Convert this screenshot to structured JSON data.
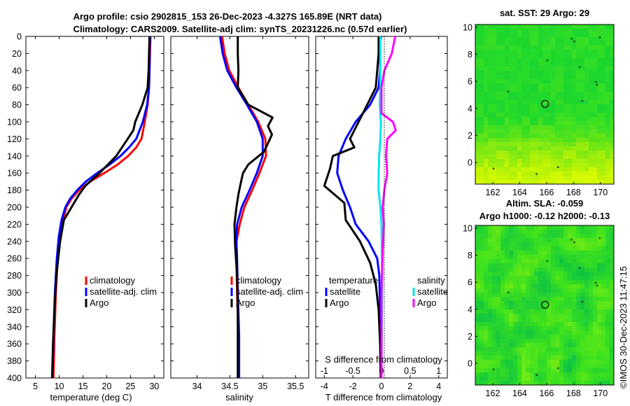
{
  "title": {
    "line1": "Argo profile: csio 2902815_153 26-Dec-2023 -4.327S 165.89E (NRT data)",
    "line2": "Climatology: CARS2009. Satellite-adj clim: synTS_20231226.nc (0.57d earlier)"
  },
  "colors": {
    "climatology": "#ff0000",
    "satellite": "#0000ff",
    "argo": "#000000",
    "sat_salinity": "#00e5ee",
    "argo_salinity": "#ff00ff"
  },
  "depth_ticks": [
    0,
    20,
    40,
    60,
    80,
    100,
    120,
    140,
    160,
    180,
    200,
    220,
    240,
    260,
    280,
    300,
    320,
    340,
    360,
    380,
    400
  ],
  "chart_data": [
    {
      "type": "line",
      "name": "temperature",
      "xlabel": "temperature (deg C)",
      "ylabel": "depth",
      "xlim": [
        3,
        32
      ],
      "ylim": [
        0,
        400
      ],
      "y_reversed": true,
      "xticks": [
        5,
        10,
        15,
        20,
        25,
        30
      ],
      "legend": [
        "climatology",
        "satellite-adj. clim",
        "Argo"
      ],
      "legend_position": "lower-right",
      "series": [
        {
          "name": "climatology",
          "color": "#ff0000",
          "x": [
            29.2,
            29.1,
            29.0,
            28.9,
            28.6,
            28.0,
            27.3,
            26.2,
            24.5,
            22.3,
            19.5,
            16.5,
            14.2,
            12.6,
            11.5,
            10.7,
            10.1,
            9.6,
            9.3,
            9.0,
            8.8
          ],
          "y": [
            0,
            20,
            40,
            60,
            80,
            100,
            120,
            130,
            140,
            150,
            160,
            170,
            180,
            190,
            200,
            220,
            240,
            270,
            300,
            350,
            400
          ]
        },
        {
          "name": "satellite-adj. clim",
          "color": "#0000ff",
          "x": [
            29.1,
            29.0,
            29.0,
            28.9,
            28.5,
            27.6,
            26.2,
            24.7,
            22.9,
            20.6,
            18.0,
            15.6,
            13.8,
            12.3,
            11.3,
            10.5,
            9.9,
            9.5,
            9.1,
            8.8,
            8.6
          ],
          "y": [
            0,
            20,
            40,
            60,
            80,
            100,
            120,
            130,
            140,
            150,
            160,
            170,
            180,
            190,
            200,
            215,
            235,
            260,
            300,
            350,
            400
          ]
        },
        {
          "name": "Argo",
          "color": "#000000",
          "x": [
            29.0,
            28.9,
            28.8,
            28.6,
            27.5,
            26.0,
            25.6,
            24.4,
            22.0,
            18.5,
            15.5,
            14.2,
            12.6,
            11.0,
            10.2,
            9.4,
            9.0,
            8.7,
            8.5
          ],
          "y": [
            0,
            20,
            40,
            60,
            80,
            100,
            110,
            120,
            140,
            160,
            175,
            185,
            200,
            215,
            240,
            280,
            320,
            360,
            400
          ]
        }
      ]
    },
    {
      "type": "line",
      "name": "salinity",
      "xlabel": "salinity",
      "ylabel": "depth",
      "xlim": [
        33.6,
        35.7
      ],
      "ylim": [
        0,
        400
      ],
      "y_reversed": true,
      "xticks": [
        34,
        34.5,
        35,
        35.5
      ],
      "legend": [
        "climatology",
        "satellite-adj. clim",
        "Argo"
      ],
      "legend_position": "lower-right",
      "series": [
        {
          "name": "climatology",
          "color": "#ff0000",
          "x": [
            34.38,
            34.42,
            34.49,
            34.63,
            34.78,
            34.93,
            35.04,
            35.05,
            34.95,
            34.84,
            34.72,
            34.65,
            34.6,
            34.6,
            34.61,
            34.63,
            34.64
          ],
          "y": [
            0,
            20,
            40,
            60,
            80,
            100,
            120,
            140,
            160,
            180,
            200,
            220,
            240,
            260,
            300,
            350,
            400
          ]
        },
        {
          "name": "satellite-adj. clim",
          "color": "#0000ff",
          "x": [
            34.35,
            34.39,
            34.46,
            34.6,
            34.76,
            34.91,
            35.0,
            35.0,
            34.91,
            34.8,
            34.68,
            34.61,
            34.6,
            34.61,
            34.62,
            34.64,
            34.64
          ],
          "y": [
            0,
            20,
            40,
            60,
            80,
            100,
            120,
            140,
            160,
            180,
            200,
            220,
            240,
            260,
            300,
            350,
            400
          ]
        },
        {
          "name": "Argo",
          "color": "#000000",
          "x": [
            34.62,
            34.62,
            34.63,
            34.62,
            34.78,
            35.15,
            35.08,
            35.14,
            35.02,
            34.78,
            34.7,
            34.67,
            34.63,
            34.6,
            34.57,
            34.58,
            34.61,
            34.62,
            34.62,
            34.62
          ],
          "y": [
            0,
            20,
            40,
            60,
            80,
            95,
            105,
            115,
            135,
            150,
            160,
            170,
            185,
            200,
            220,
            245,
            280,
            320,
            360,
            400
          ]
        }
      ]
    },
    {
      "type": "line",
      "name": "difference from climatology",
      "xlabel": "T difference from climatology",
      "xlabel_top": "S difference from climatology",
      "xlim": [
        -4.6,
        4.6
      ],
      "ylim": [
        0,
        400
      ],
      "y_reversed": true,
      "xticks": [
        -4,
        -2,
        0,
        2,
        4
      ],
      "xticks_top": [
        -1,
        -0.5,
        0,
        0.5,
        1
      ],
      "xticks_top_labels": [
        "-1",
        "-0.5",
        "0",
        "0.5",
        "1"
      ],
      "legend_temperature": [
        "temperature",
        "satellite",
        "Argo"
      ],
      "legend_salinity": [
        "salinity",
        "satellite",
        "Argo"
      ],
      "series": [
        {
          "name": "satellite (temperature)",
          "color": "#0000ff",
          "x": [
            -0.1,
            -0.1,
            -0.1,
            -0.2,
            -0.8,
            -1.8,
            -2.5,
            -3.0,
            -3.1,
            -2.7,
            -2.2,
            -1.8,
            -0.9,
            -0.3,
            -0.15,
            -0.1,
            -0.05
          ],
          "y": [
            0,
            20,
            40,
            60,
            80,
            100,
            120,
            140,
            160,
            180,
            200,
            220,
            240,
            260,
            280,
            320,
            400
          ]
        },
        {
          "name": "Argo (temperature)",
          "color": "#000000",
          "x": [
            -0.2,
            -0.2,
            -0.3,
            -0.4,
            -1.0,
            -1.6,
            -2.2,
            -1.9,
            -3.4,
            -3.6,
            -4.0,
            -2.6,
            -2.5,
            -1.5,
            -0.8,
            -0.4,
            -0.2,
            -0.1,
            -0.05
          ],
          "y": [
            0,
            20,
            40,
            60,
            80,
            100,
            120,
            130,
            140,
            155,
            175,
            195,
            215,
            240,
            265,
            290,
            320,
            360,
            400
          ]
        },
        {
          "name": "satellite (salinity)",
          "color": "#00e5ee",
          "x": [
            -0.02,
            -0.02,
            -0.02,
            -0.03,
            -0.01,
            -0.02,
            -0.04,
            -0.05,
            -0.05,
            -0.02,
            0.0,
            0.01,
            0.01,
            0.0
          ],
          "y": [
            0,
            40,
            60,
            80,
            100,
            120,
            140,
            160,
            180,
            200,
            220,
            260,
            300,
            400
          ]
        },
        {
          "name": "Argo (salinity)",
          "color": "#ff00ff",
          "x": [
            0.24,
            0.18,
            0.05,
            0.0,
            0.0,
            0.0,
            0.2,
            0.25,
            0.1,
            0.08,
            0.1,
            0.05,
            0.02,
            0.04,
            0.02,
            0.0,
            0.0
          ],
          "y": [
            0,
            20,
            40,
            60,
            80,
            90,
            100,
            110,
            120,
            140,
            160,
            180,
            200,
            220,
            250,
            300,
            400
          ]
        }
      ]
    },
    {
      "type": "heatmap",
      "name": "sat. SST",
      "title": "sat. SST: 29 Argo: 29",
      "xlim": [
        160.7,
        171.0
      ],
      "ylim": [
        -1.6,
        10.2
      ],
      "xticks": [
        162,
        164,
        166,
        168,
        170
      ],
      "yticks": [
        0,
        2,
        4,
        6,
        8,
        10
      ],
      "argo_position": {
        "lon": 165.89,
        "lat": 4.33
      }
    },
    {
      "type": "heatmap",
      "name": "Altim. SLA",
      "title": "Altim. SLA: -0.059",
      "subtitle": "Argo h1000: -0.12 h2000: -0.13",
      "xlim": [
        160.7,
        171.0
      ],
      "ylim": [
        -1.6,
        10.2
      ],
      "xticks": [
        162,
        164,
        166,
        168,
        170
      ],
      "yticks": [
        0,
        2,
        4,
        6,
        8,
        10
      ],
      "argo_position": {
        "lon": 165.89,
        "lat": 4.33
      }
    }
  ],
  "footer": {
    "credit": "©IMOS 30-Dec-2023 11:47:15"
  }
}
